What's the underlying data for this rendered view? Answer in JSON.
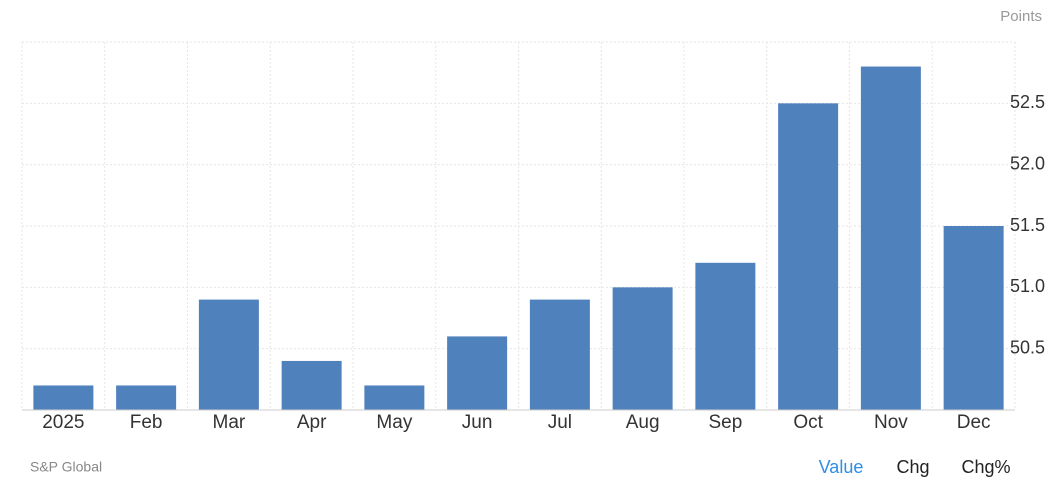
{
  "chart_data": {
    "type": "bar",
    "unit_label": "Points",
    "source": "S&P Global",
    "categories": [
      "2025",
      "Feb",
      "Mar",
      "Apr",
      "May",
      "Jun",
      "Jul",
      "Aug",
      "Sep",
      "Oct",
      "Nov",
      "Dec"
    ],
    "values": [
      50.2,
      50.2,
      50.9,
      50.4,
      50.2,
      50.6,
      50.9,
      51.0,
      51.2,
      52.5,
      52.8,
      51.5
    ],
    "color": "#4f81bd",
    "ylim": [
      50,
      53
    ],
    "yticks": [
      50.5,
      {
        "value": 51,
        "label": "51.0"
      },
      51.5,
      {
        "value": 52,
        "label": "52.0"
      },
      52.5
    ],
    "grid": true
  },
  "controls": [
    "Value",
    "Chg",
    "Chg%"
  ]
}
